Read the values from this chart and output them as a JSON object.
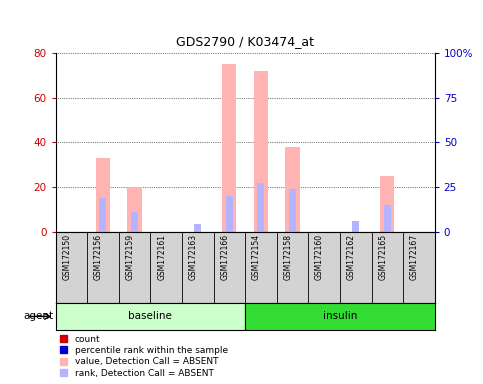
{
  "title": "GDS2790 / K03474_at",
  "samples": [
    "GSM172150",
    "GSM172156",
    "GSM172159",
    "GSM172161",
    "GSM172163",
    "GSM172166",
    "GSM172154",
    "GSM172158",
    "GSM172160",
    "GSM172162",
    "GSM172165",
    "GSM172167"
  ],
  "groups": [
    "baseline",
    "baseline",
    "baseline",
    "baseline",
    "baseline",
    "baseline",
    "insulin",
    "insulin",
    "insulin",
    "insulin",
    "insulin",
    "insulin"
  ],
  "value_absent": [
    0,
    33,
    20,
    0,
    0,
    75,
    72,
    38,
    0,
    0,
    25,
    0
  ],
  "rank_absent": [
    0,
    19,
    11,
    0,
    4,
    20,
    27,
    24,
    0,
    6,
    15,
    0
  ],
  "count": [
    0,
    0,
    0,
    0,
    0,
    0,
    0,
    0,
    0,
    0,
    0,
    0
  ],
  "pct_rank": [
    0,
    0,
    0,
    0,
    0,
    0,
    0,
    0,
    0,
    0,
    0,
    0
  ],
  "ylim_left": [
    0,
    80
  ],
  "ylim_right": [
    0,
    100
  ],
  "yticks_left": [
    0,
    20,
    40,
    60,
    80
  ],
  "yticks_right": [
    0,
    25,
    50,
    75,
    100
  ],
  "yticklabels_right": [
    "0",
    "25",
    "50",
    "75",
    "100%"
  ],
  "left_color": "#cc0000",
  "right_color": "#0000cc",
  "value_absent_color": "#ffb3b3",
  "rank_absent_color": "#b3b3ff",
  "baseline_color": "#ccffcc",
  "insulin_color": "#33dd33",
  "bg_color": "#d3d3d3",
  "bar_width": 0.45,
  "rank_bar_width": 0.22,
  "agent_label": "agent",
  "legend_items": [
    {
      "label": "count",
      "color": "#cc0000"
    },
    {
      "label": "percentile rank within the sample",
      "color": "#0000cc"
    },
    {
      "label": "value, Detection Call = ABSENT",
      "color": "#ffb3b3"
    },
    {
      "label": "rank, Detection Call = ABSENT",
      "color": "#b3b3ff"
    }
  ],
  "n_baseline": 6,
  "n_total": 12
}
